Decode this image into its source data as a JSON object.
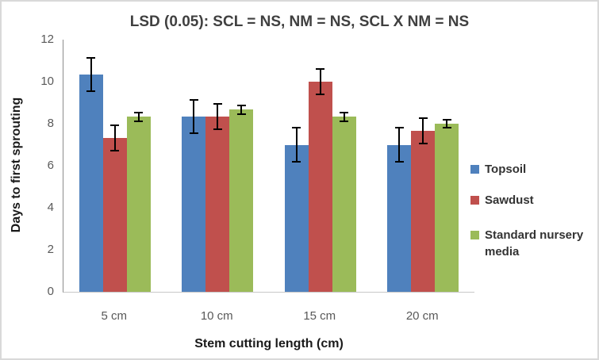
{
  "window": {
    "background": "#FFFFFF",
    "border_color": "#D9D9D9"
  },
  "chart_data": {
    "type": "bar",
    "title": "LSD (0.05): SCL = NS, NM = NS, SCL X NM = NS",
    "xlabel": "Stem cutting length (cm)",
    "ylabel": "Days to first sprouting",
    "categories": [
      "5 cm",
      "10 cm",
      "15 cm",
      "20 cm"
    ],
    "series": [
      {
        "name": "Topsoil",
        "color": "#4F81BD",
        "values": [
          10.33,
          8.33,
          7.0,
          7.0
        ],
        "error_plus_minus": [
          0.8,
          0.8,
          0.8,
          0.8
        ]
      },
      {
        "name": "Sawdust",
        "color": "#C0504D",
        "values": [
          7.33,
          8.33,
          10.0,
          7.67
        ],
        "error_plus_minus": [
          0.6,
          0.6,
          0.6,
          0.6
        ]
      },
      {
        "name": "Standard nursery media",
        "color": "#9BBB59",
        "values": [
          8.33,
          8.67,
          8.33,
          8.0
        ],
        "error_plus_minus": [
          0.2,
          0.2,
          0.2,
          0.2
        ]
      }
    ],
    "ylim": [
      0,
      12
    ],
    "yticks": [
      0,
      2,
      4,
      6,
      8,
      10,
      12
    ],
    "grid": false,
    "legend_position": "right",
    "error_bars": true,
    "error_bar_color": "#000000",
    "text_colors": {
      "title": "#404040",
      "axis_titles": "#1A1A1A",
      "tick_labels": "#595959",
      "legend": "#333333"
    }
  }
}
